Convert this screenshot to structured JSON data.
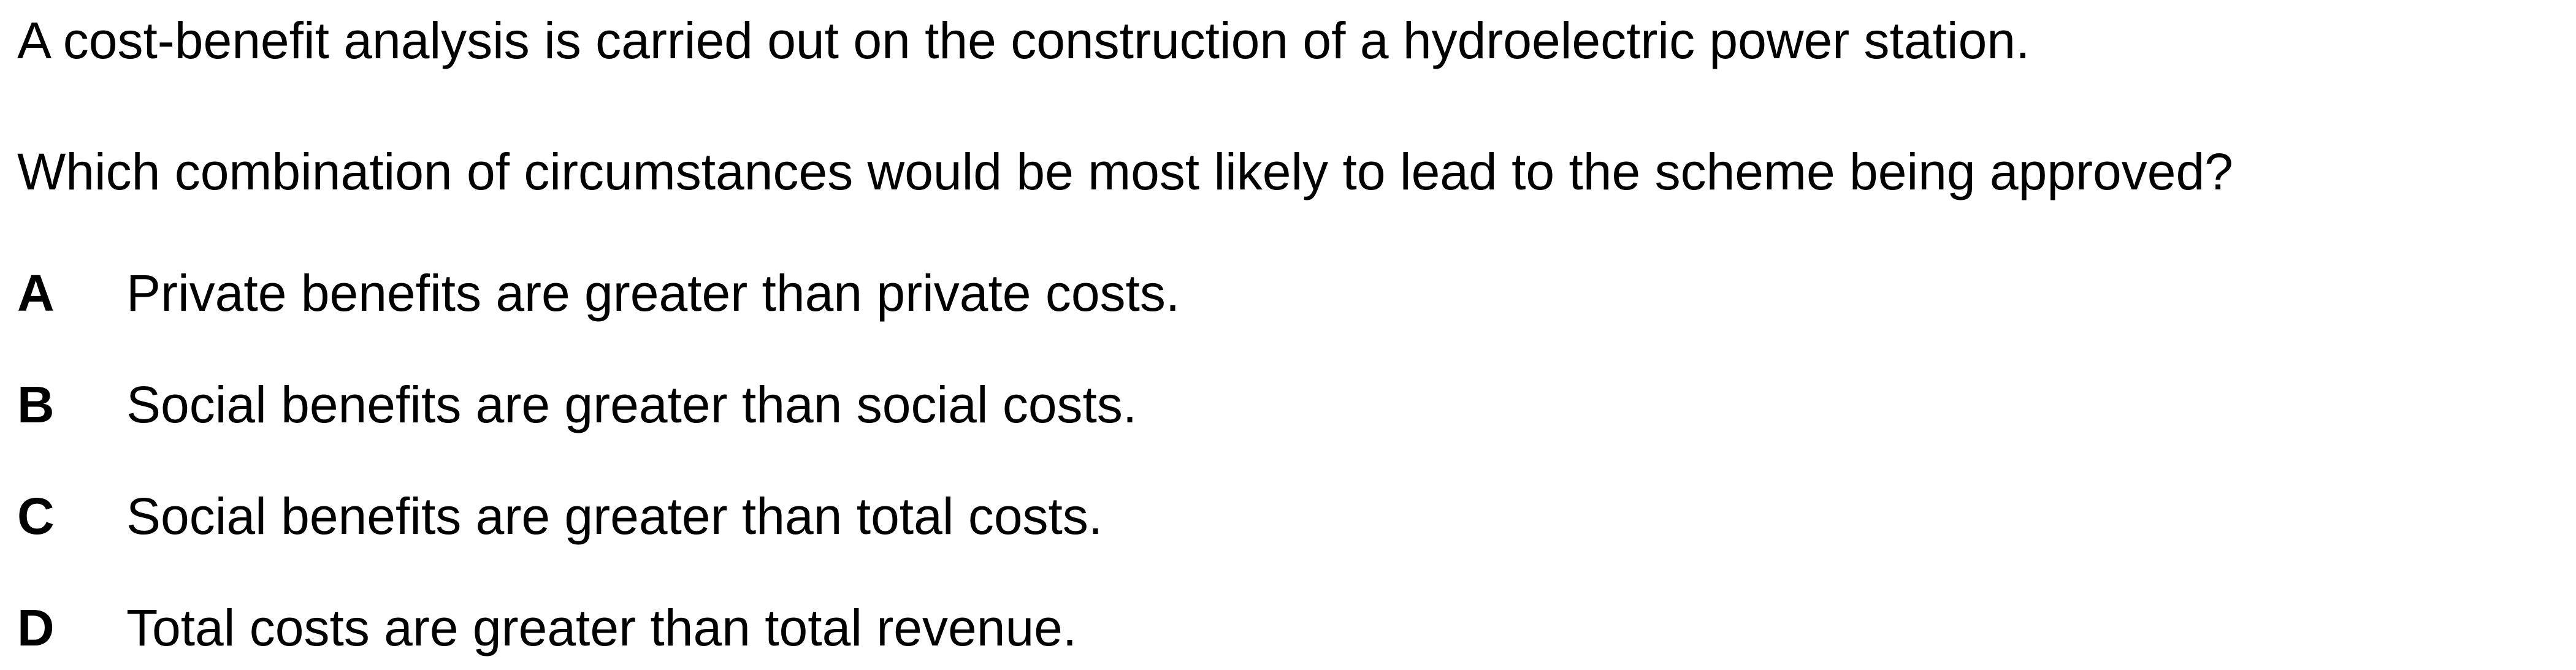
{
  "question": {
    "stem": "A cost-benefit analysis is carried out on the construction of a hydroelectric power station.",
    "prompt": "Which combination of circumstances would be most likely to lead to the scheme being approved?"
  },
  "options": [
    {
      "letter": "A",
      "text": "Private benefits are greater than private costs."
    },
    {
      "letter": "B",
      "text": "Social benefits are greater than social costs."
    },
    {
      "letter": "C",
      "text": "Social benefits are greater than total costs."
    },
    {
      "letter": "D",
      "text": "Total costs are greater than total revenue."
    }
  ]
}
